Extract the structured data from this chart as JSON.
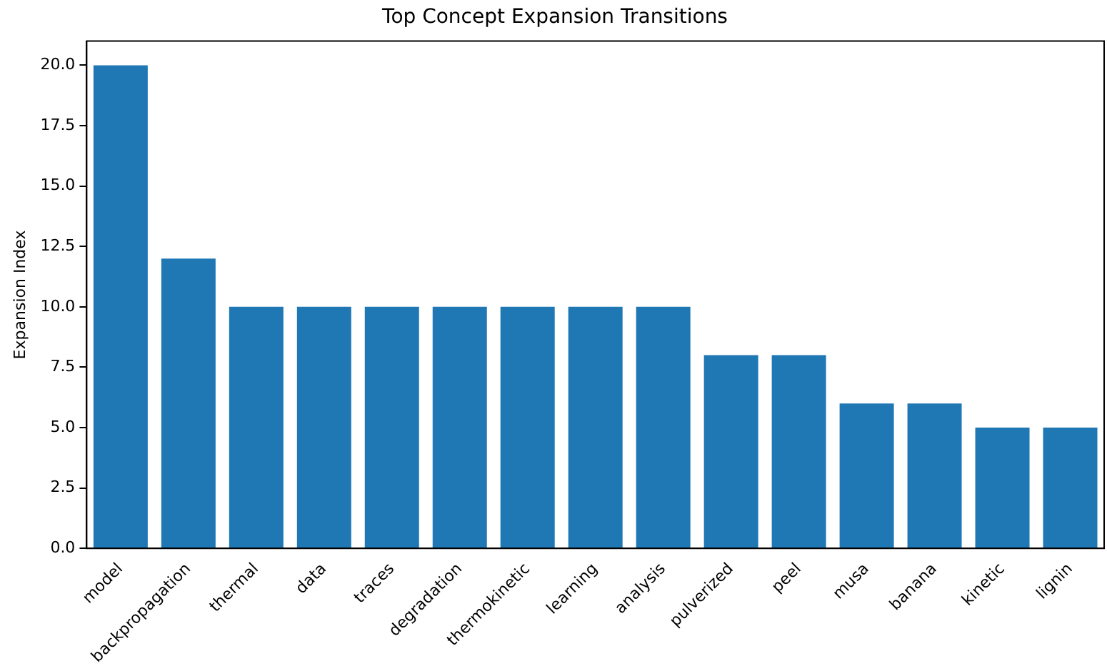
{
  "chart_data": {
    "type": "bar",
    "title": "Top Concept Expansion Transitions",
    "ylabel": "Expansion Index",
    "categories": [
      "model",
      "backpropagation",
      "thermal",
      "data",
      "traces",
      "degradation",
      "thermokinetic",
      "learning",
      "analysis",
      "pulverized",
      "peel",
      "musa",
      "banana",
      "kinetic",
      "lignin"
    ],
    "values": [
      20,
      12,
      10,
      10,
      10,
      10,
      10,
      10,
      10,
      8,
      8,
      6,
      6,
      5,
      5
    ],
    "color": "#1f77b4",
    "ylim": [
      0,
      21
    ],
    "yticks": [
      {
        "value": 0,
        "label": "0.0"
      },
      {
        "value": 2.5,
        "label": "2.5"
      },
      {
        "value": 5,
        "label": "5.0"
      },
      {
        "value": 7.5,
        "label": "7.5"
      },
      {
        "value": 10,
        "label": "10.0"
      },
      {
        "value": 12.5,
        "label": "12.5"
      },
      {
        "value": 15,
        "label": "15.0"
      },
      {
        "value": 17.5,
        "label": "17.5"
      },
      {
        "value": 20,
        "label": "20.0"
      }
    ],
    "grid": false,
    "legend": false
  }
}
